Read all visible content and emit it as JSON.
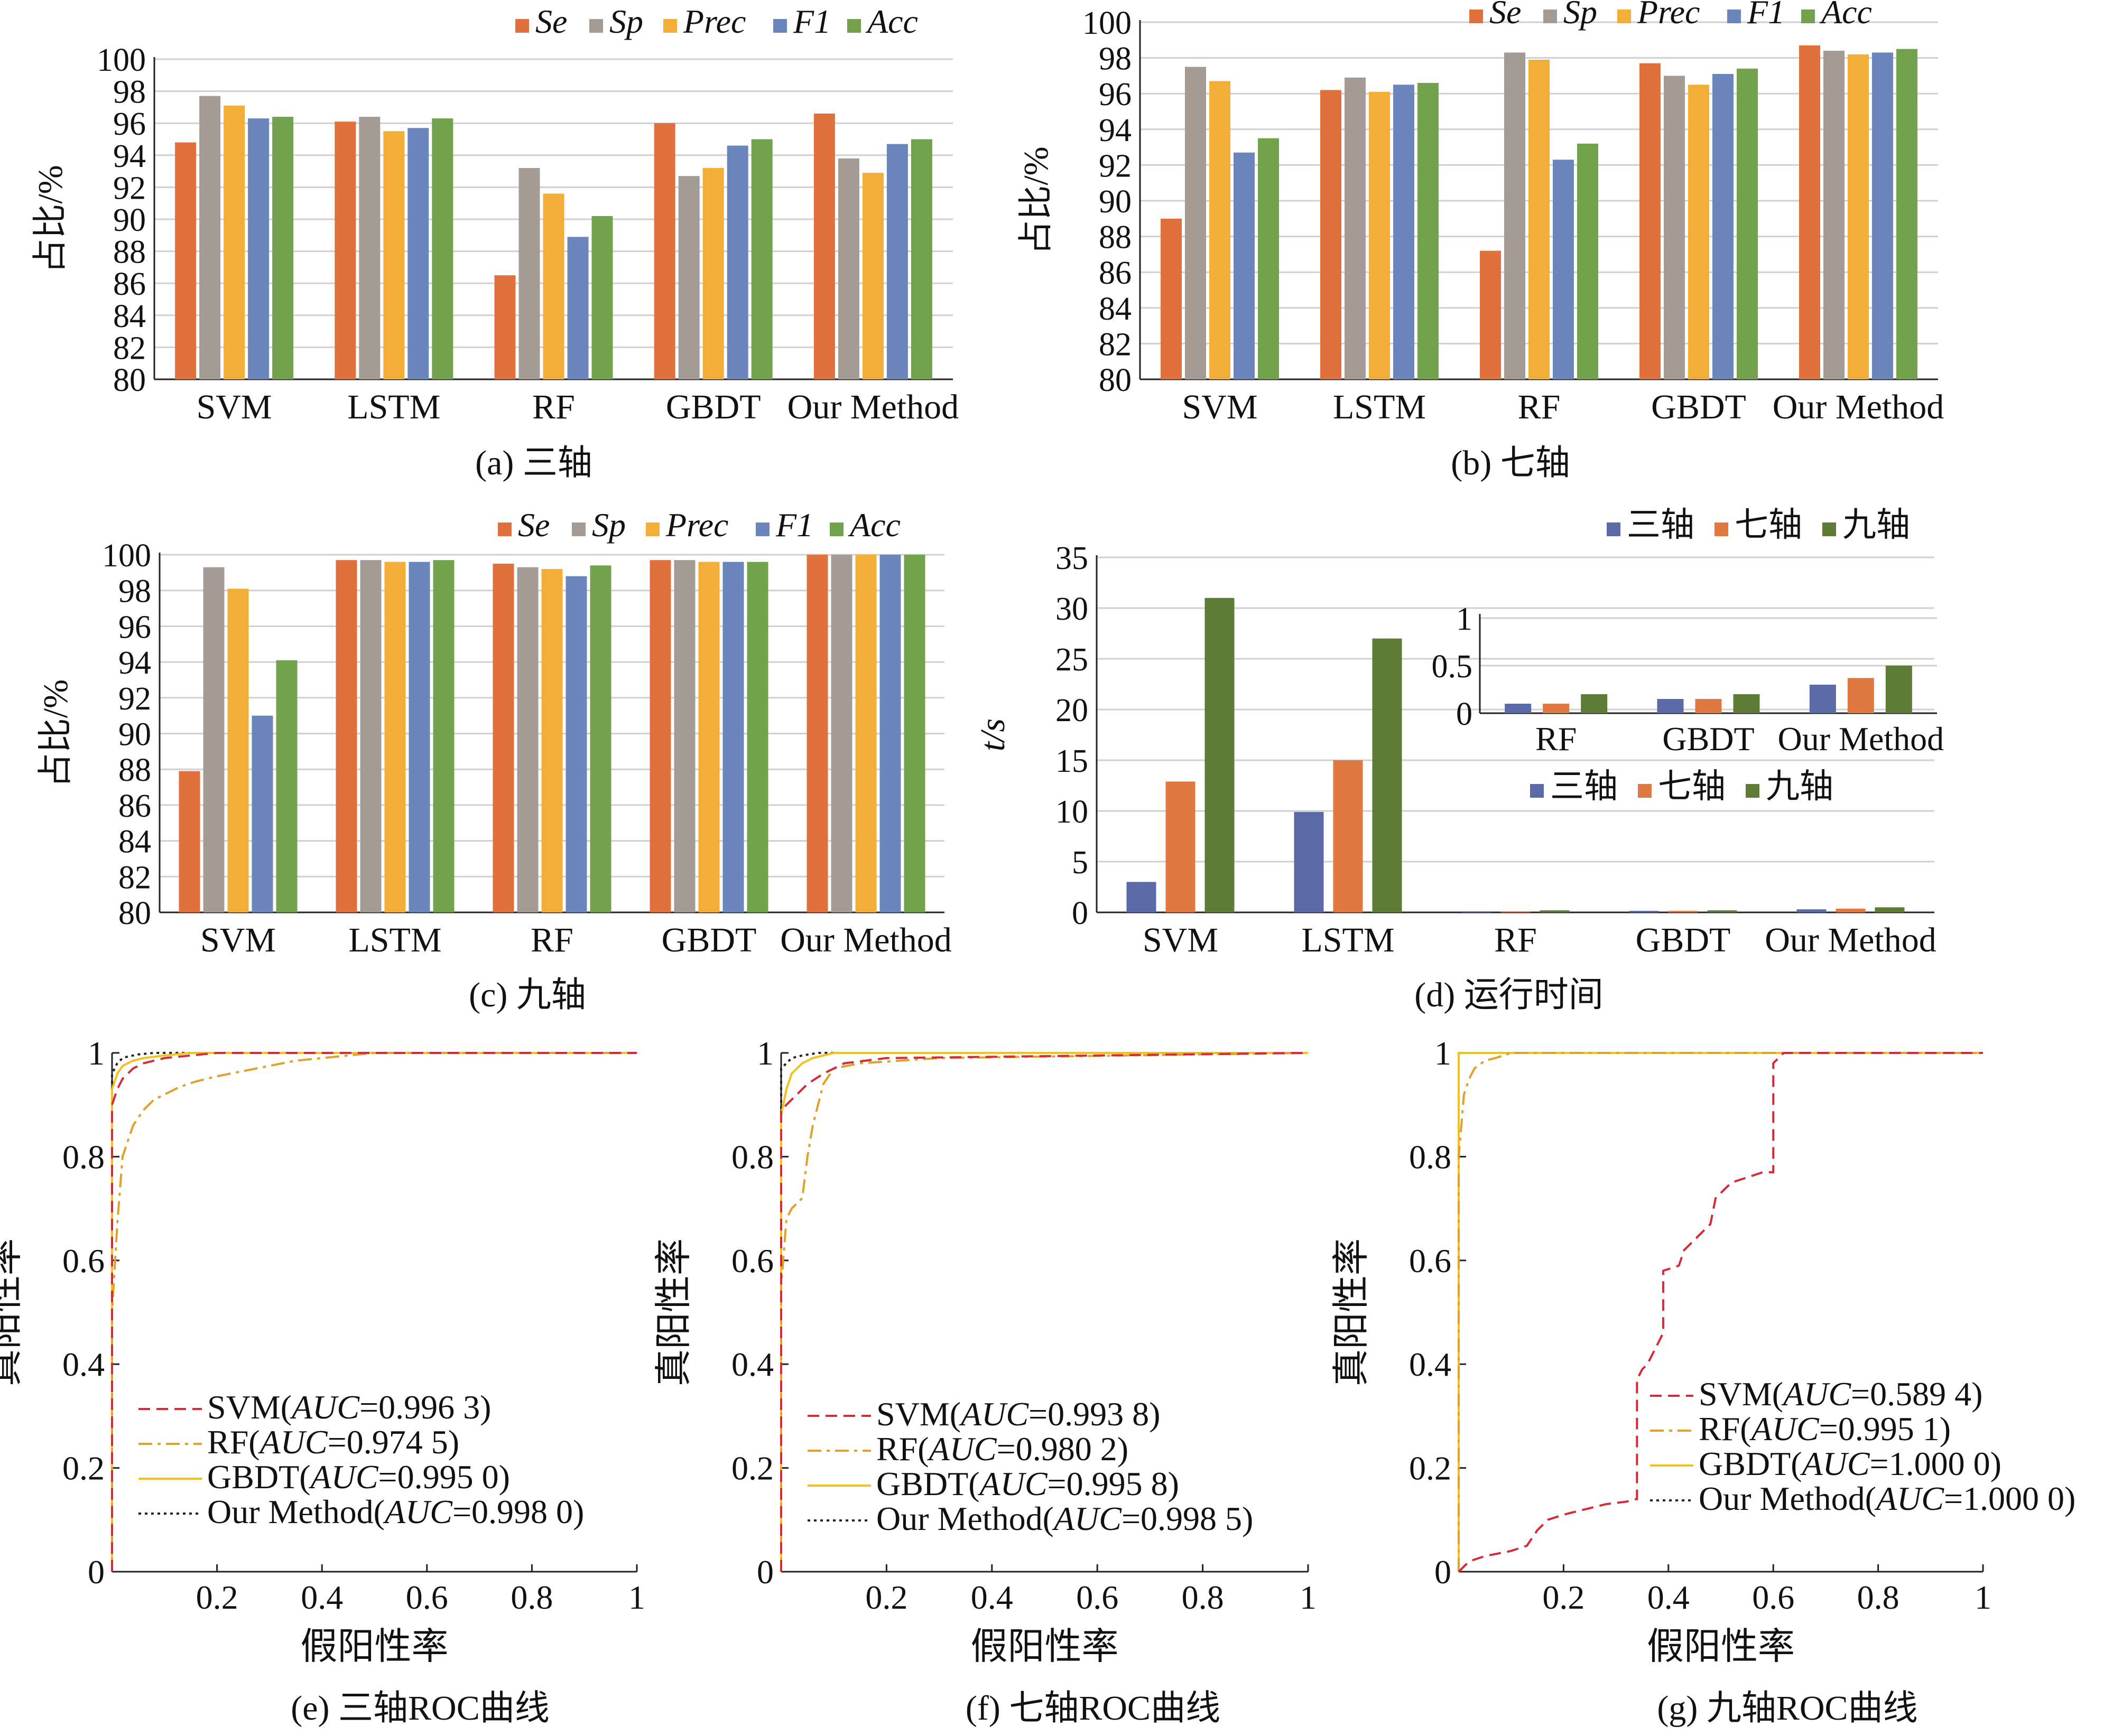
{
  "colors": {
    "Se": "#e0703c",
    "Sp": "#a39b94",
    "Prec": "#f2ae38",
    "F1": "#6a86bd",
    "Acc": "#72a24b",
    "t3": "#5a6aa8",
    "t7": "#e07842",
    "t9": "#5f7c36",
    "svm_roc": "#d42a3a",
    "rf_roc": "#e0a02c",
    "gbdt_roc": "#f2c21a",
    "our_roc": "#222222"
  },
  "chart_data": [
    {
      "id": "a",
      "type": "bar",
      "caption": "(a) 三轴",
      "ylabel": "占比/%",
      "ylim": [
        80,
        100
      ],
      "yticks": [
        "80",
        "82",
        "84",
        "86",
        "88",
        "90",
        "92",
        "94",
        "96",
        "98",
        "100"
      ],
      "categories": [
        "SVM",
        "LSTM",
        "RF",
        "GBDT",
        "Our Method"
      ],
      "legend_position": "top",
      "series": [
        {
          "name": "Se",
          "values": [
            94.8,
            96.1,
            86.5,
            96.0,
            96.6
          ]
        },
        {
          "name": "Sp",
          "values": [
            97.7,
            96.4,
            93.2,
            92.7,
            93.8
          ]
        },
        {
          "name": "Prec",
          "values": [
            97.1,
            95.5,
            91.6,
            93.2,
            92.9
          ]
        },
        {
          "name": "F1",
          "values": [
            96.3,
            95.7,
            88.9,
            94.6,
            94.7
          ]
        },
        {
          "name": "Acc",
          "values": [
            96.4,
            96.3,
            90.2,
            95.0,
            95.0
          ]
        }
      ]
    },
    {
      "id": "b",
      "type": "bar",
      "caption": "(b) 七轴",
      "ylabel": "占比/%",
      "ylim": [
        80,
        100
      ],
      "yticks": [
        "80",
        "82",
        "84",
        "86",
        "88",
        "90",
        "92",
        "94",
        "96",
        "98",
        "100"
      ],
      "categories": [
        "SVM",
        "LSTM",
        "RF",
        "GBDT",
        "Our Method"
      ],
      "legend_position": "top",
      "series": [
        {
          "name": "Se",
          "values": [
            89.0,
            96.2,
            87.2,
            97.7,
            98.7
          ]
        },
        {
          "name": "Sp",
          "values": [
            97.5,
            96.9,
            98.3,
            97.0,
            98.4
          ]
        },
        {
          "name": "Prec",
          "values": [
            96.7,
            96.1,
            97.9,
            96.5,
            98.2
          ]
        },
        {
          "name": "F1",
          "values": [
            92.7,
            96.5,
            92.3,
            97.1,
            98.3
          ]
        },
        {
          "name": "Acc",
          "values": [
            93.5,
            96.6,
            93.2,
            97.4,
            98.5
          ]
        }
      ]
    },
    {
      "id": "c",
      "type": "bar",
      "caption": "(c) 九轴",
      "ylabel": "占比/%",
      "ylim": [
        80,
        100
      ],
      "yticks": [
        "80",
        "82",
        "84",
        "86",
        "88",
        "90",
        "92",
        "94",
        "96",
        "98",
        "100"
      ],
      "categories": [
        "SVM",
        "LSTM",
        "RF",
        "GBDT",
        "Our Method"
      ],
      "legend_position": "top",
      "series": [
        {
          "name": "Se",
          "values": [
            87.9,
            99.7,
            99.5,
            99.7,
            100.0
          ]
        },
        {
          "name": "Sp",
          "values": [
            99.3,
            99.7,
            99.3,
            99.7,
            100.0
          ]
        },
        {
          "name": "Prec",
          "values": [
            98.1,
            99.6,
            99.2,
            99.6,
            100.0
          ]
        },
        {
          "name": "F1",
          "values": [
            91.0,
            99.6,
            98.8,
            99.6,
            100.0
          ]
        },
        {
          "name": "Acc",
          "values": [
            94.1,
            99.7,
            99.4,
            99.6,
            100.0
          ]
        }
      ]
    },
    {
      "id": "d",
      "type": "bar",
      "caption": "(d) 运行时间",
      "ylabel": "t/s",
      "ylim": [
        0,
        35
      ],
      "yticks": [
        "0",
        "5",
        "10",
        "15",
        "20",
        "25",
        "30",
        "35"
      ],
      "categories": [
        "SVM",
        "LSTM",
        "RF",
        "GBDT",
        "Our Method"
      ],
      "legend_position": "top-right",
      "series": [
        {
          "name": "三轴",
          "values": [
            3.0,
            9.9,
            0.1,
            0.15,
            0.3
          ]
        },
        {
          "name": "七轴",
          "values": [
            12.9,
            15.0,
            0.1,
            0.15,
            0.37
          ]
        },
        {
          "name": "九轴",
          "values": [
            31.0,
            27.0,
            0.2,
            0.2,
            0.5
          ]
        }
      ],
      "inset": {
        "ylim": [
          0,
          1
        ],
        "yticks": [
          "0",
          "0.5",
          "1"
        ],
        "categories": [
          "RF",
          "GBDT",
          "Our Method"
        ],
        "series": [
          {
            "name": "三轴",
            "values": [
              0.1,
              0.15,
              0.3
            ]
          },
          {
            "name": "七轴",
            "values": [
              0.1,
              0.15,
              0.37
            ]
          },
          {
            "name": "九轴",
            "values": [
              0.2,
              0.2,
              0.5
            ]
          }
        ]
      }
    },
    {
      "id": "e",
      "type": "line",
      "caption": "(e) 三轴ROC曲线",
      "xlabel": "假阳性率",
      "ylabel": "真阳性率",
      "xlim": [
        0,
        1
      ],
      "ylim": [
        0,
        1
      ],
      "xticks": [
        "0.2",
        "0.4",
        "0.6",
        "0.8",
        "1"
      ],
      "yticks": [
        "0",
        "0.2",
        "0.4",
        "0.6",
        "0.8",
        "1"
      ],
      "legend_position": "bottom-left",
      "series": [
        {
          "name": "SVM",
          "auc": "0.996 3",
          "x": [
            0,
            0,
            0.01,
            0.02,
            0.04,
            0.06,
            0.1,
            0.15,
            0.2,
            1
          ],
          "y": [
            0,
            0.9,
            0.93,
            0.95,
            0.97,
            0.98,
            0.99,
            0.995,
            1,
            1
          ]
        },
        {
          "name": "RF",
          "auc": "0.974 5",
          "x": [
            0,
            0,
            0.01,
            0.02,
            0.04,
            0.06,
            0.08,
            0.1,
            0.13,
            0.16,
            0.2,
            0.25,
            0.3,
            0.35,
            0.4,
            0.45,
            0.5,
            1
          ],
          "y": [
            0,
            0.5,
            0.67,
            0.8,
            0.86,
            0.89,
            0.91,
            0.92,
            0.935,
            0.945,
            0.955,
            0.965,
            0.975,
            0.985,
            0.99,
            0.995,
            1,
            1
          ]
        },
        {
          "name": "GBDT",
          "auc": "0.995 0",
          "x": [
            0,
            0,
            0.01,
            0.02,
            0.04,
            0.06,
            0.1,
            0.15,
            1
          ],
          "y": [
            0,
            0.93,
            0.96,
            0.975,
            0.985,
            0.99,
            0.995,
            1,
            1
          ]
        },
        {
          "name": "Our Method",
          "auc": "0.998 0",
          "x": [
            0,
            0,
            0.01,
            0.02,
            0.03,
            0.05,
            0.08,
            1
          ],
          "y": [
            0,
            0.96,
            0.98,
            0.99,
            0.993,
            0.997,
            1,
            1
          ]
        }
      ]
    },
    {
      "id": "f",
      "type": "line",
      "caption": "(f) 七轴ROC曲线",
      "xlabel": "假阳性率",
      "ylabel": "真阳性率",
      "xlim": [
        0,
        1
      ],
      "ylim": [
        0,
        1
      ],
      "xticks": [
        "0.2",
        "0.4",
        "0.6",
        "0.8",
        "1"
      ],
      "yticks": [
        "0",
        "0.2",
        "0.4",
        "0.6",
        "0.8",
        "1"
      ],
      "legend_position": "bottom-left",
      "series": [
        {
          "name": "SVM",
          "auc": "0.993 8",
          "x": [
            0,
            0,
            0.01,
            0.03,
            0.05,
            0.08,
            0.12,
            0.2,
            1
          ],
          "y": [
            0,
            0.89,
            0.9,
            0.92,
            0.94,
            0.96,
            0.98,
            0.99,
            1
          ]
        },
        {
          "name": "RF",
          "auc": "0.980 2",
          "x": [
            0,
            0,
            0.01,
            0.02,
            0.04,
            0.05,
            0.06,
            0.08,
            0.1,
            0.15,
            0.3,
            1
          ],
          "y": [
            0,
            0.55,
            0.68,
            0.7,
            0.72,
            0.8,
            0.86,
            0.94,
            0.97,
            0.98,
            0.99,
            1
          ]
        },
        {
          "name": "GBDT",
          "auc": "0.995 8",
          "x": [
            0,
            0,
            0.01,
            0.02,
            0.04,
            0.06,
            0.1,
            1
          ],
          "y": [
            0,
            0.88,
            0.93,
            0.96,
            0.98,
            0.99,
            1,
            1
          ]
        },
        {
          "name": "Our Method",
          "auc": "0.998 5",
          "x": [
            0,
            0,
            0.01,
            0.02,
            0.04,
            0.07,
            1
          ],
          "y": [
            0,
            0.97,
            0.98,
            0.99,
            0.995,
            1,
            1
          ]
        }
      ]
    },
    {
      "id": "g",
      "type": "line",
      "caption": "(g) 九轴ROC曲线",
      "xlabel": "假阳性率",
      "ylabel": "真阳性率",
      "xlim": [
        0,
        1
      ],
      "ylim": [
        0,
        1
      ],
      "xticks": [
        "0.2",
        "0.4",
        "0.6",
        "0.8",
        "1"
      ],
      "yticks": [
        "0",
        "0.2",
        "0.4",
        "0.6",
        "0.8",
        "1"
      ],
      "legend_position": "bottom-right",
      "series": [
        {
          "name": "SVM",
          "auc": "0.589 4",
          "x": [
            0,
            0.02,
            0.05,
            0.1,
            0.13,
            0.15,
            0.17,
            0.2,
            0.24,
            0.28,
            0.32,
            0.34,
            0.34,
            0.35,
            0.36,
            0.37,
            0.38,
            0.39,
            0.39,
            0.42,
            0.43,
            0.47,
            0.48,
            0.49,
            0.5,
            0.52,
            0.55,
            0.58,
            0.6,
            0.6,
            0.62,
            1
          ],
          "y": [
            0,
            0.02,
            0.03,
            0.04,
            0.05,
            0.08,
            0.1,
            0.11,
            0.12,
            0.13,
            0.135,
            0.14,
            0.37,
            0.39,
            0.4,
            0.42,
            0.44,
            0.46,
            0.58,
            0.59,
            0.62,
            0.66,
            0.67,
            0.72,
            0.73,
            0.75,
            0.76,
            0.77,
            0.77,
            0.98,
            1,
            1
          ]
        },
        {
          "name": "RF",
          "auc": "0.995 1",
          "x": [
            0,
            0,
            0.005,
            0.01,
            0.02,
            0.03,
            0.05,
            0.07,
            0.1,
            0.3,
            1
          ],
          "y": [
            0,
            0.8,
            0.86,
            0.92,
            0.95,
            0.97,
            0.985,
            0.99,
            1,
            1,
            1
          ]
        },
        {
          "name": "GBDT",
          "auc": "1.000 0",
          "x": [
            0,
            0,
            1
          ],
          "y": [
            0,
            1,
            1
          ]
        },
        {
          "name": "Our Method",
          "auc": "1.000 0",
          "x": [
            0,
            0,
            1
          ],
          "y": [
            0,
            1,
            1
          ]
        }
      ]
    }
  ]
}
